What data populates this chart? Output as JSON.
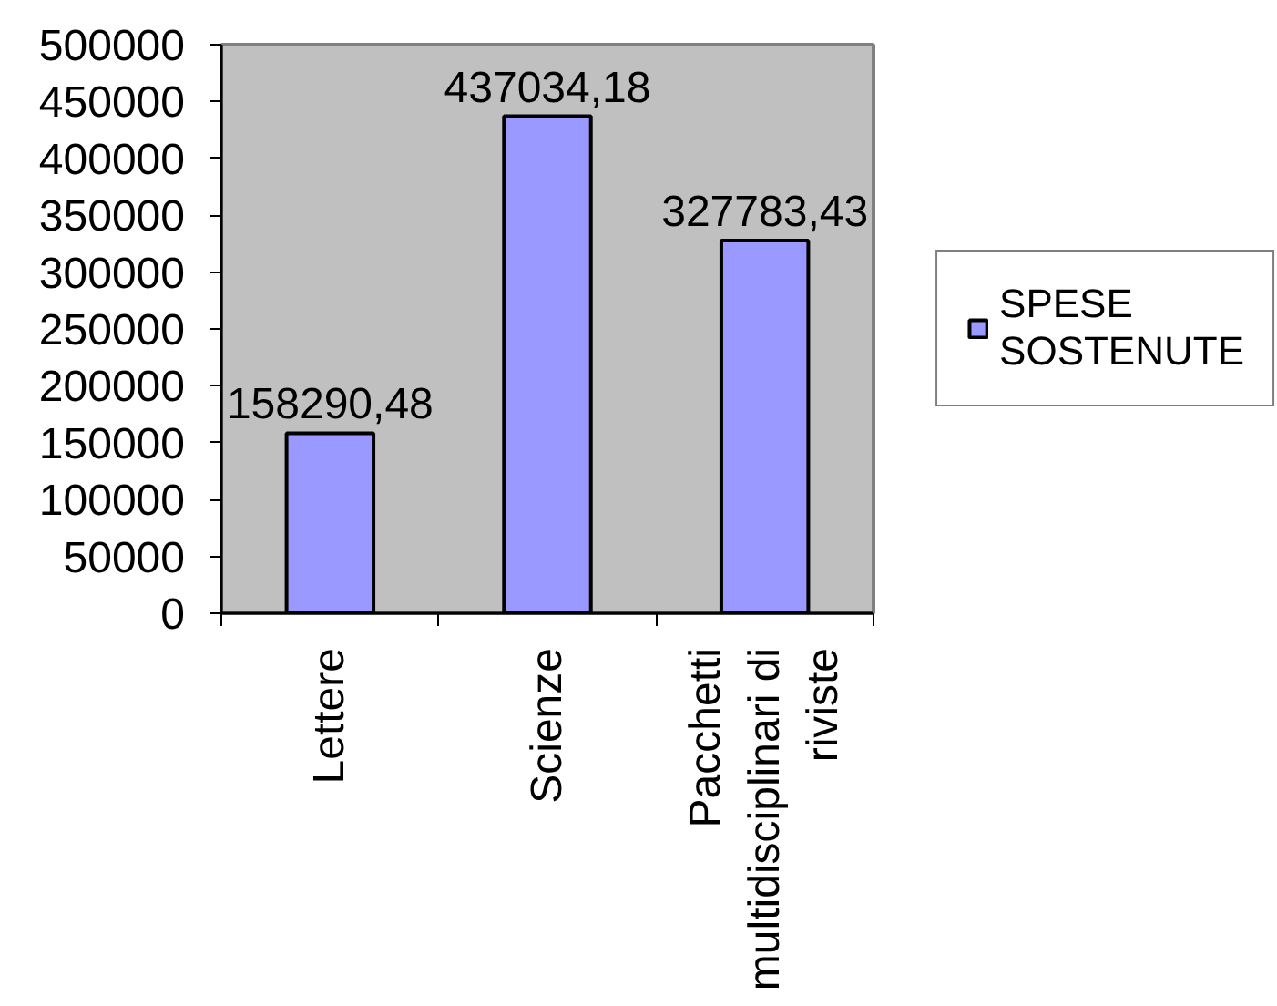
{
  "chart_data": {
    "type": "bar",
    "categories": [
      "Lettere",
      "Scienze",
      "Pacchetti multidisciplinari di riviste"
    ],
    "series": [
      {
        "name": "SPESE SOSTENUTE",
        "color": "#9999ff",
        "values": [
          158290.48,
          437034.18,
          327783.43
        ],
        "value_labels": [
          "158290,48",
          "437034,18",
          "327783,43"
        ]
      }
    ],
    "ylim": [
      0,
      500000
    ],
    "yticks": [
      0,
      50000,
      100000,
      150000,
      200000,
      250000,
      300000,
      350000,
      400000,
      450000,
      500000
    ],
    "legend": "right"
  }
}
